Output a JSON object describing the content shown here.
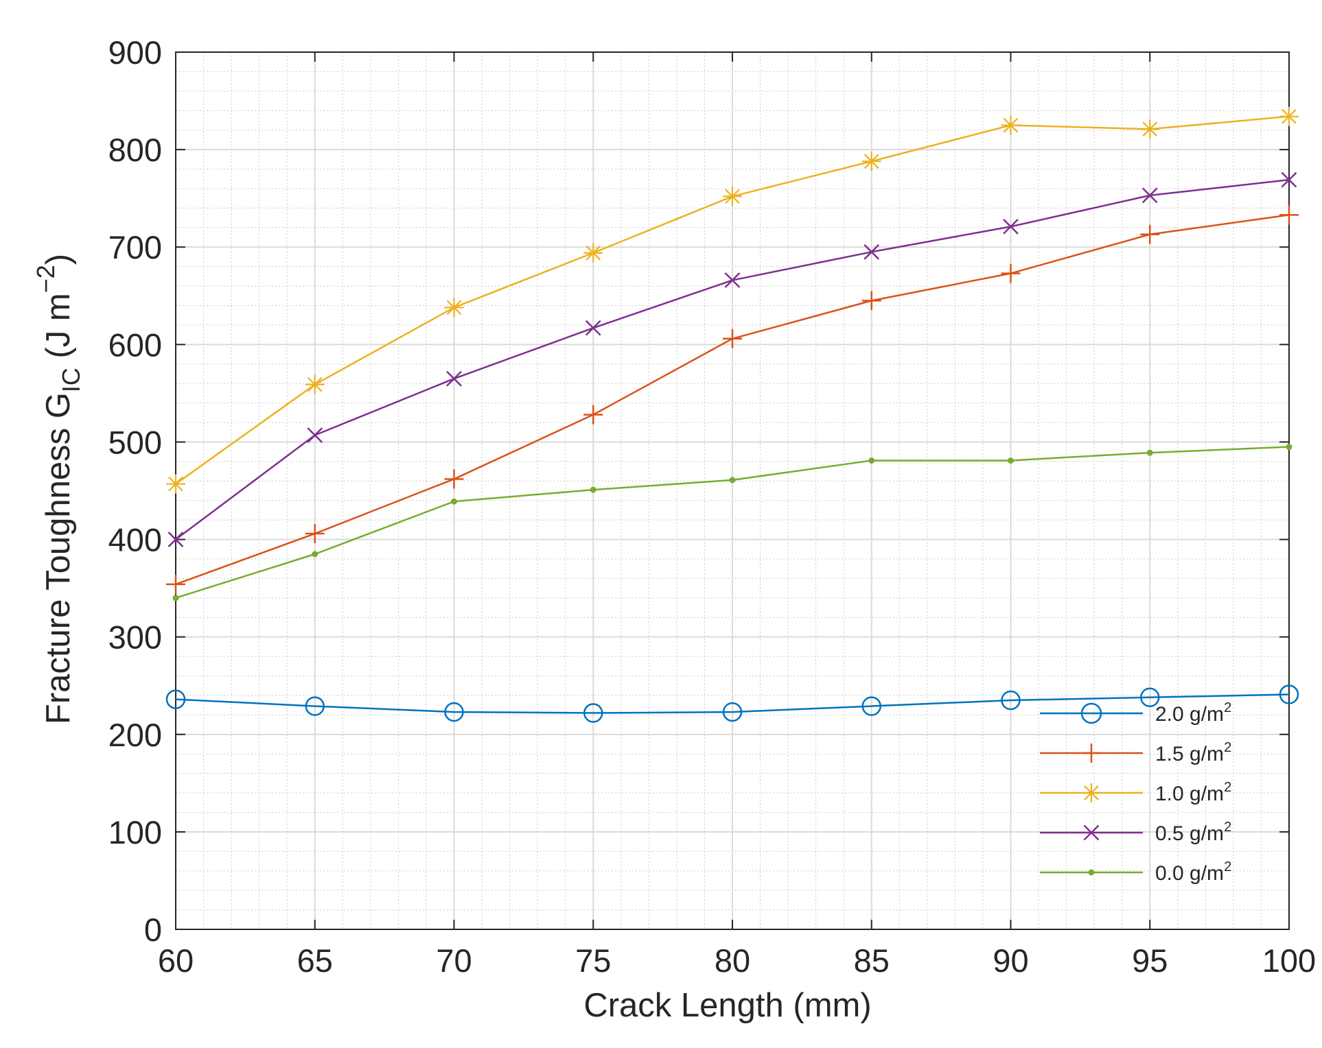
{
  "chart_data": {
    "type": "line",
    "xlabel": "Crack Length (mm)",
    "ylabel": {
      "main": "Fracture Toughness G",
      "subscript": "IC",
      "unit_open": " (J m",
      "unit_exponent": "−2",
      "unit_close": ")"
    },
    "xlim": [
      60,
      100
    ],
    "ylim": [
      0,
      900
    ],
    "x_ticks": [
      "60",
      "65",
      "70",
      "75",
      "80",
      "85",
      "90",
      "95",
      "100"
    ],
    "y_ticks": [
      "0",
      "100",
      "200",
      "300",
      "400",
      "500",
      "600",
      "700",
      "800",
      "900"
    ],
    "grid": true,
    "minor_grid": true,
    "legend_position": "bottom-right",
    "x": [
      60,
      65,
      70,
      75,
      80,
      85,
      90,
      95,
      100
    ],
    "series": [
      {
        "name": "2.0 g/m",
        "name_sup": "2",
        "color": "#0072BD",
        "marker": "circle",
        "values": [
          236,
          229,
          223,
          222,
          223,
          229,
          235,
          238,
          241
        ]
      },
      {
        "name": "1.5 g/m",
        "name_sup": "2",
        "color": "#D95319",
        "marker": "plus",
        "values": [
          354,
          406,
          462,
          528,
          606,
          645,
          673,
          713,
          733
        ]
      },
      {
        "name": "1.0 g/m",
        "name_sup": "2",
        "color": "#EDB120",
        "marker": "asterisk",
        "values": [
          457,
          559,
          638,
          694,
          752,
          788,
          825,
          821,
          834
        ]
      },
      {
        "name": "0.5 g/m",
        "name_sup": "2",
        "color": "#7E2F8E",
        "marker": "x",
        "values": [
          400,
          507,
          565,
          617,
          666,
          695,
          721,
          753,
          769
        ]
      },
      {
        "name": "0.0 g/m",
        "name_sup": "2",
        "color": "#77AC30",
        "marker": "dot",
        "values": [
          340,
          385,
          439,
          451,
          461,
          481,
          481,
          489,
          495
        ]
      }
    ]
  }
}
